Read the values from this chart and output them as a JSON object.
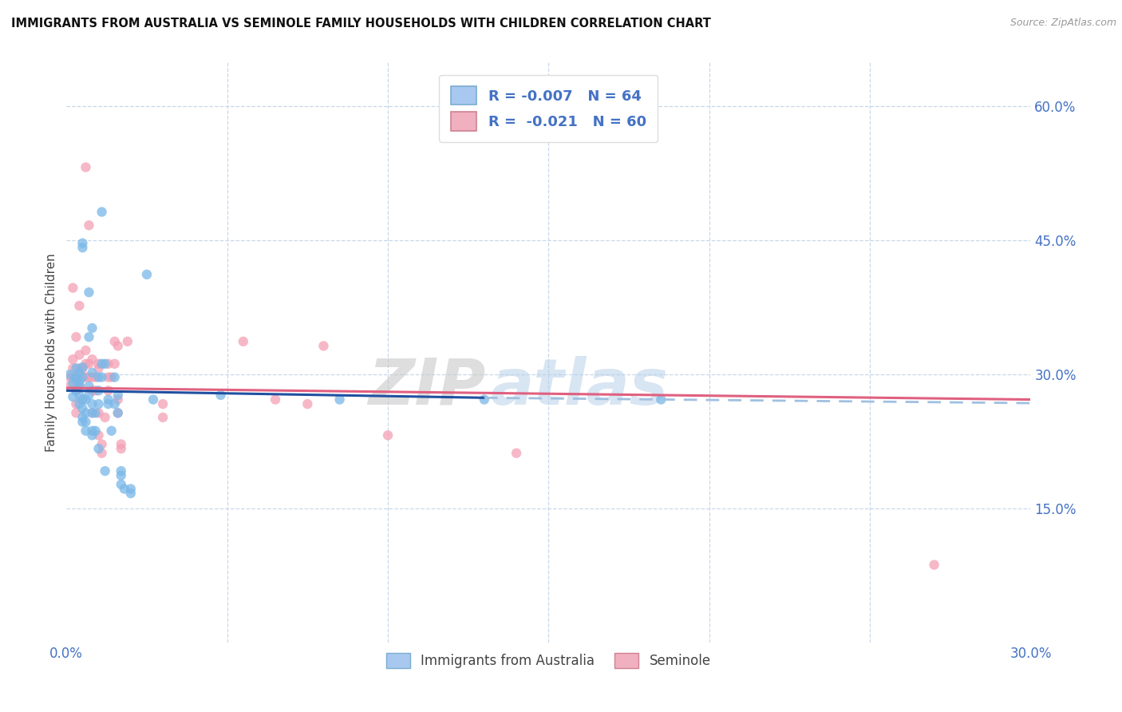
{
  "title": "IMMIGRANTS FROM AUSTRALIA VS SEMINOLE FAMILY HOUSEHOLDS WITH CHILDREN CORRELATION CHART",
  "source": "Source: ZipAtlas.com",
  "ylabel": "Family Households with Children",
  "x_min": 0.0,
  "x_max": 0.3,
  "y_min": 0.0,
  "y_max": 0.65,
  "x_ticks": [
    0.0,
    0.05,
    0.1,
    0.15,
    0.2,
    0.25,
    0.3
  ],
  "y_ticks_right": [
    0.15,
    0.3,
    0.45,
    0.6
  ],
  "y_tick_labels_right": [
    "15.0%",
    "30.0%",
    "45.0%",
    "60.0%"
  ],
  "legend_entries": [
    {
      "label": "R = -0.007   N = 64",
      "color": "#a8c8f0"
    },
    {
      "label": "R =  -0.021   N = 60",
      "color": "#f0a8b8"
    }
  ],
  "series1_color": "#7ab8e8",
  "series2_color": "#f4a0b5",
  "series1_line_color": "#2050a0",
  "series1_line_dash_color": "#a0c0e0",
  "series2_line_color": "#e06080",
  "watermark_zip": "ZIP",
  "watermark_atlas": "atlas",
  "legend_bottom": [
    "Immigrants from Australia",
    "Seminole"
  ],
  "series1_scatter": [
    [
      0.001,
      0.3
    ],
    [
      0.002,
      0.29
    ],
    [
      0.002,
      0.275
    ],
    [
      0.003,
      0.295
    ],
    [
      0.003,
      0.307
    ],
    [
      0.003,
      0.297
    ],
    [
      0.003,
      0.282
    ],
    [
      0.004,
      0.302
    ],
    [
      0.004,
      0.288
    ],
    [
      0.004,
      0.277
    ],
    [
      0.004,
      0.267
    ],
    [
      0.004,
      0.292
    ],
    [
      0.005,
      0.447
    ],
    [
      0.005,
      0.442
    ],
    [
      0.005,
      0.308
    ],
    [
      0.005,
      0.297
    ],
    [
      0.005,
      0.272
    ],
    [
      0.005,
      0.262
    ],
    [
      0.005,
      0.252
    ],
    [
      0.005,
      0.247
    ],
    [
      0.006,
      0.272
    ],
    [
      0.006,
      0.257
    ],
    [
      0.006,
      0.247
    ],
    [
      0.006,
      0.237
    ],
    [
      0.007,
      0.392
    ],
    [
      0.007,
      0.342
    ],
    [
      0.007,
      0.287
    ],
    [
      0.007,
      0.277
    ],
    [
      0.008,
      0.352
    ],
    [
      0.008,
      0.302
    ],
    [
      0.008,
      0.267
    ],
    [
      0.008,
      0.257
    ],
    [
      0.008,
      0.237
    ],
    [
      0.008,
      0.232
    ],
    [
      0.009,
      0.257
    ],
    [
      0.009,
      0.237
    ],
    [
      0.01,
      0.297
    ],
    [
      0.01,
      0.282
    ],
    [
      0.01,
      0.267
    ],
    [
      0.01,
      0.217
    ],
    [
      0.011,
      0.482
    ],
    [
      0.011,
      0.312
    ],
    [
      0.011,
      0.297
    ],
    [
      0.012,
      0.312
    ],
    [
      0.012,
      0.192
    ],
    [
      0.013,
      0.272
    ],
    [
      0.013,
      0.267
    ],
    [
      0.014,
      0.237
    ],
    [
      0.015,
      0.297
    ],
    [
      0.015,
      0.267
    ],
    [
      0.016,
      0.277
    ],
    [
      0.016,
      0.257
    ],
    [
      0.017,
      0.192
    ],
    [
      0.017,
      0.187
    ],
    [
      0.017,
      0.177
    ],
    [
      0.018,
      0.172
    ],
    [
      0.02,
      0.172
    ],
    [
      0.02,
      0.167
    ],
    [
      0.025,
      0.412
    ],
    [
      0.027,
      0.272
    ],
    [
      0.048,
      0.277
    ],
    [
      0.085,
      0.272
    ],
    [
      0.13,
      0.272
    ],
    [
      0.185,
      0.272
    ]
  ],
  "series2_scatter": [
    [
      0.001,
      0.297
    ],
    [
      0.001,
      0.287
    ],
    [
      0.002,
      0.397
    ],
    [
      0.002,
      0.317
    ],
    [
      0.002,
      0.307
    ],
    [
      0.002,
      0.297
    ],
    [
      0.003,
      0.342
    ],
    [
      0.003,
      0.292
    ],
    [
      0.003,
      0.282
    ],
    [
      0.003,
      0.267
    ],
    [
      0.003,
      0.257
    ],
    [
      0.004,
      0.377
    ],
    [
      0.004,
      0.322
    ],
    [
      0.004,
      0.307
    ],
    [
      0.004,
      0.297
    ],
    [
      0.004,
      0.287
    ],
    [
      0.005,
      0.307
    ],
    [
      0.005,
      0.297
    ],
    [
      0.005,
      0.272
    ],
    [
      0.006,
      0.532
    ],
    [
      0.006,
      0.327
    ],
    [
      0.006,
      0.312
    ],
    [
      0.006,
      0.297
    ],
    [
      0.007,
      0.467
    ],
    [
      0.007,
      0.312
    ],
    [
      0.007,
      0.297
    ],
    [
      0.008,
      0.317
    ],
    [
      0.008,
      0.297
    ],
    [
      0.008,
      0.282
    ],
    [
      0.008,
      0.257
    ],
    [
      0.009,
      0.297
    ],
    [
      0.009,
      0.282
    ],
    [
      0.01,
      0.312
    ],
    [
      0.01,
      0.307
    ],
    [
      0.01,
      0.257
    ],
    [
      0.01,
      0.232
    ],
    [
      0.011,
      0.222
    ],
    [
      0.011,
      0.212
    ],
    [
      0.012,
      0.252
    ],
    [
      0.013,
      0.312
    ],
    [
      0.013,
      0.297
    ],
    [
      0.013,
      0.282
    ],
    [
      0.014,
      0.297
    ],
    [
      0.015,
      0.337
    ],
    [
      0.015,
      0.312
    ],
    [
      0.016,
      0.332
    ],
    [
      0.016,
      0.272
    ],
    [
      0.016,
      0.257
    ],
    [
      0.017,
      0.222
    ],
    [
      0.017,
      0.217
    ],
    [
      0.019,
      0.337
    ],
    [
      0.03,
      0.267
    ],
    [
      0.03,
      0.252
    ],
    [
      0.055,
      0.337
    ],
    [
      0.065,
      0.272
    ],
    [
      0.075,
      0.267
    ],
    [
      0.08,
      0.332
    ],
    [
      0.1,
      0.232
    ],
    [
      0.14,
      0.212
    ],
    [
      0.27,
      0.087
    ]
  ],
  "series1_trend_solid": [
    [
      0.0,
      0.282
    ],
    [
      0.13,
      0.274
    ]
  ],
  "series1_trend_dash": [
    [
      0.13,
      0.274
    ],
    [
      0.3,
      0.268
    ]
  ],
  "series2_trend": [
    [
      0.0,
      0.285
    ],
    [
      0.3,
      0.272
    ]
  ]
}
